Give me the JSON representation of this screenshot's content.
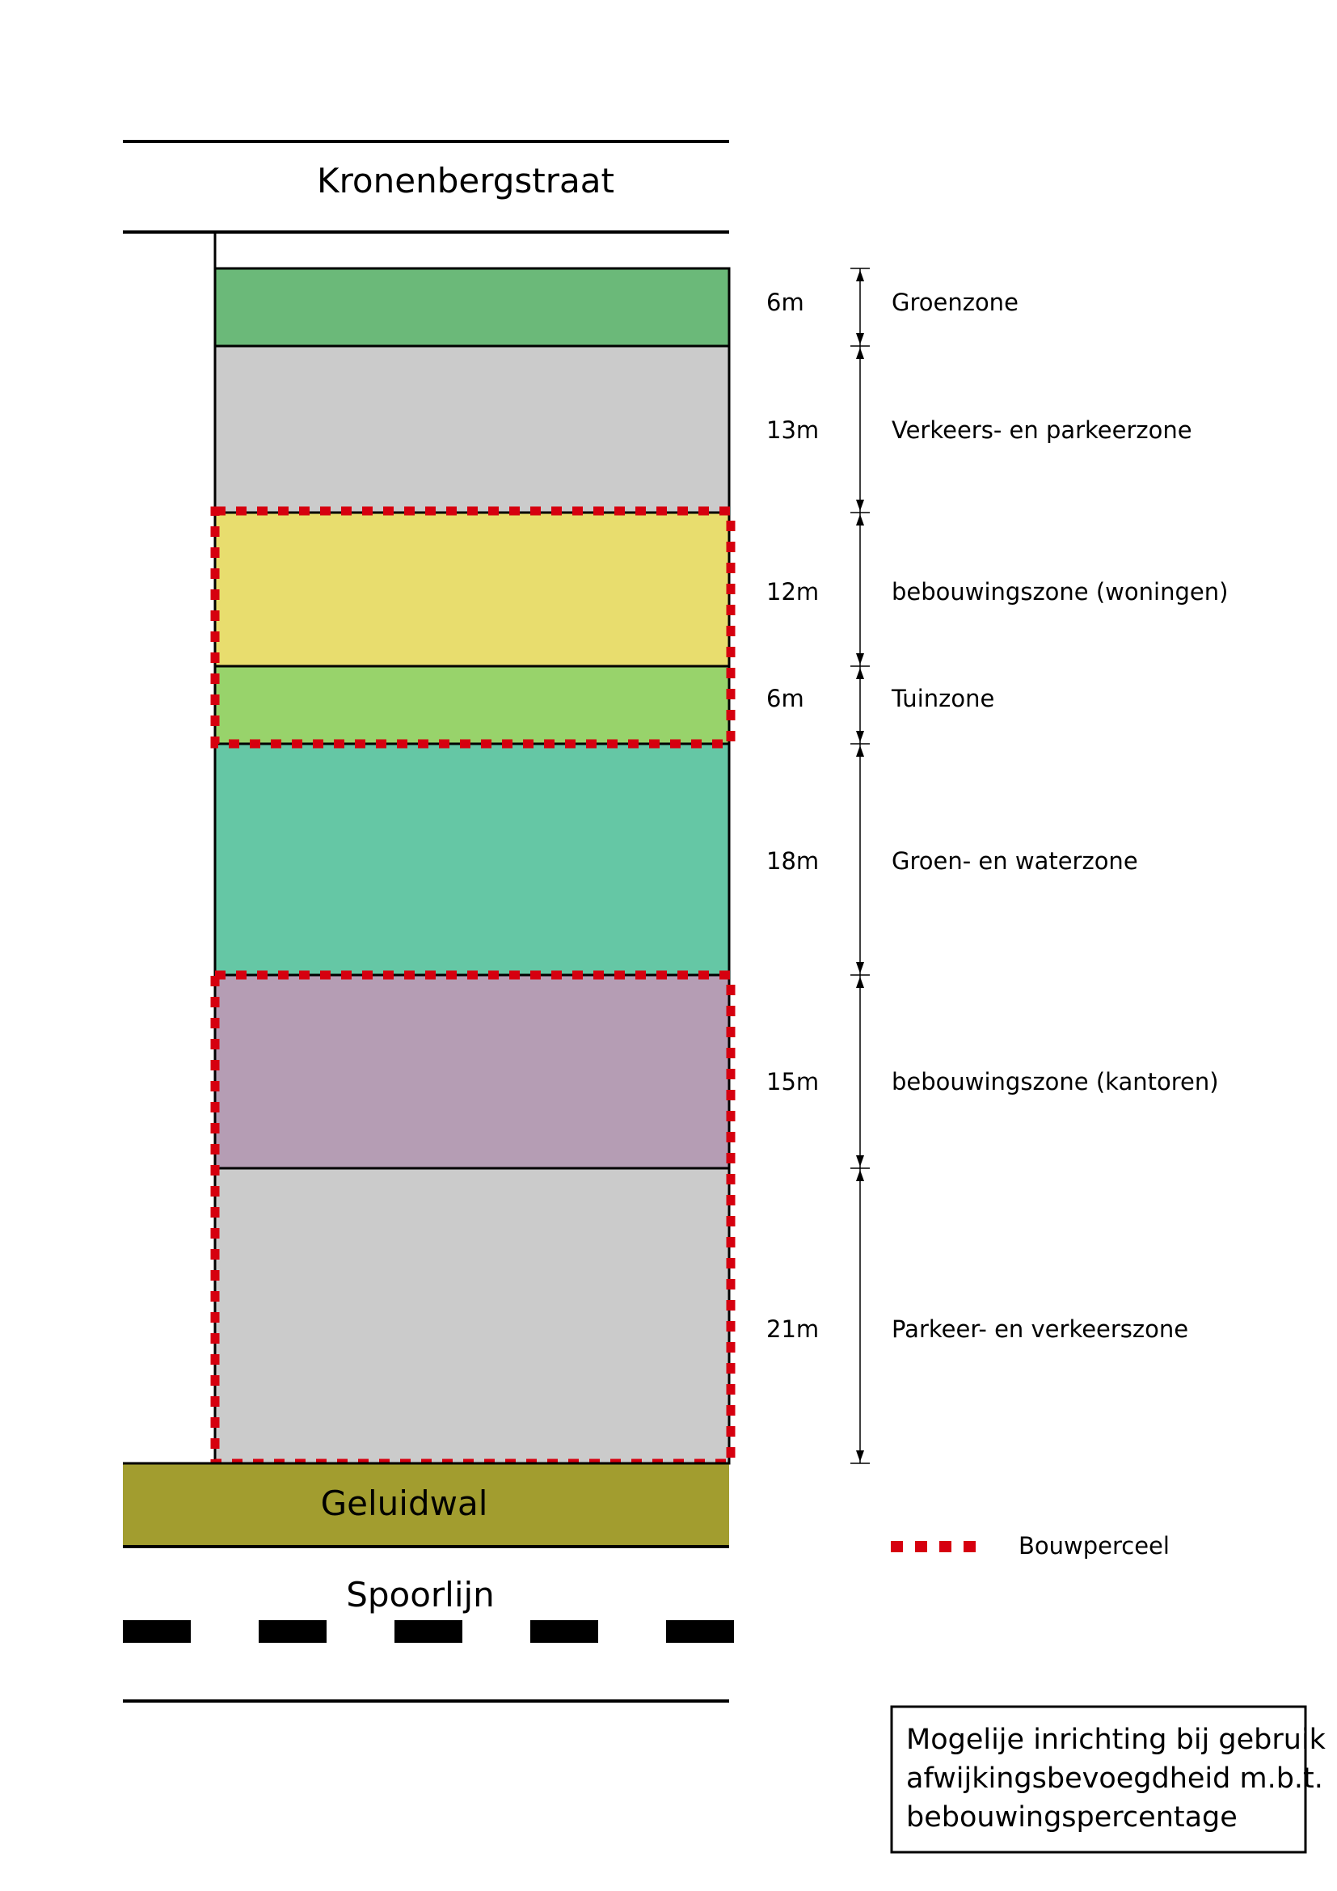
{
  "street": {
    "label": "Kronenbergstraat"
  },
  "zones": [
    {
      "id": "groenzone",
      "size": "6m",
      "label": "Groenzone",
      "meters": 6,
      "color": "#6bb979"
    },
    {
      "id": "verkeers-parkeerzone",
      "size": "13m",
      "label": "Verkeers- en parkeerzone",
      "meters": 13,
      "color": "#cbcbcb"
    },
    {
      "id": "bebouwing-woningen",
      "size": "12m",
      "label": "bebouwingszone (woningen)",
      "meters": 12,
      "color": "#e8dd6e"
    },
    {
      "id": "tuinzone",
      "size": "6m",
      "label": "Tuinzone",
      "meters": 6,
      "color": "#98d36b"
    },
    {
      "id": "groen-waterzone",
      "size": "18m",
      "label": "Groen- en waterzone",
      "meters": 18,
      "color": "#65c7a5"
    },
    {
      "id": "bebouwing-kantoren",
      "size": "15m",
      "label": "bebouwingszone (kantoren)",
      "meters": 15,
      "color": "#b59db4"
    },
    {
      "id": "parkeer-verkeerszone",
      "size": "21m",
      "label": "Parkeer- en verkeerszone",
      "meters": 21,
      "color": "#cbcbcb"
    }
  ],
  "geluidwal": {
    "label": "Geluidwal",
    "color": "#a29d2f"
  },
  "spoorlijn": {
    "label": "Spoorlijn"
  },
  "legend": {
    "label": "Bouwperceel",
    "color": "#d6000f"
  },
  "caption": {
    "lines": [
      "Mogelije inrichting bij gebruik",
      "afwijkingsbevoegdheid m.b.t.",
      "bebouwingspercentage"
    ]
  }
}
